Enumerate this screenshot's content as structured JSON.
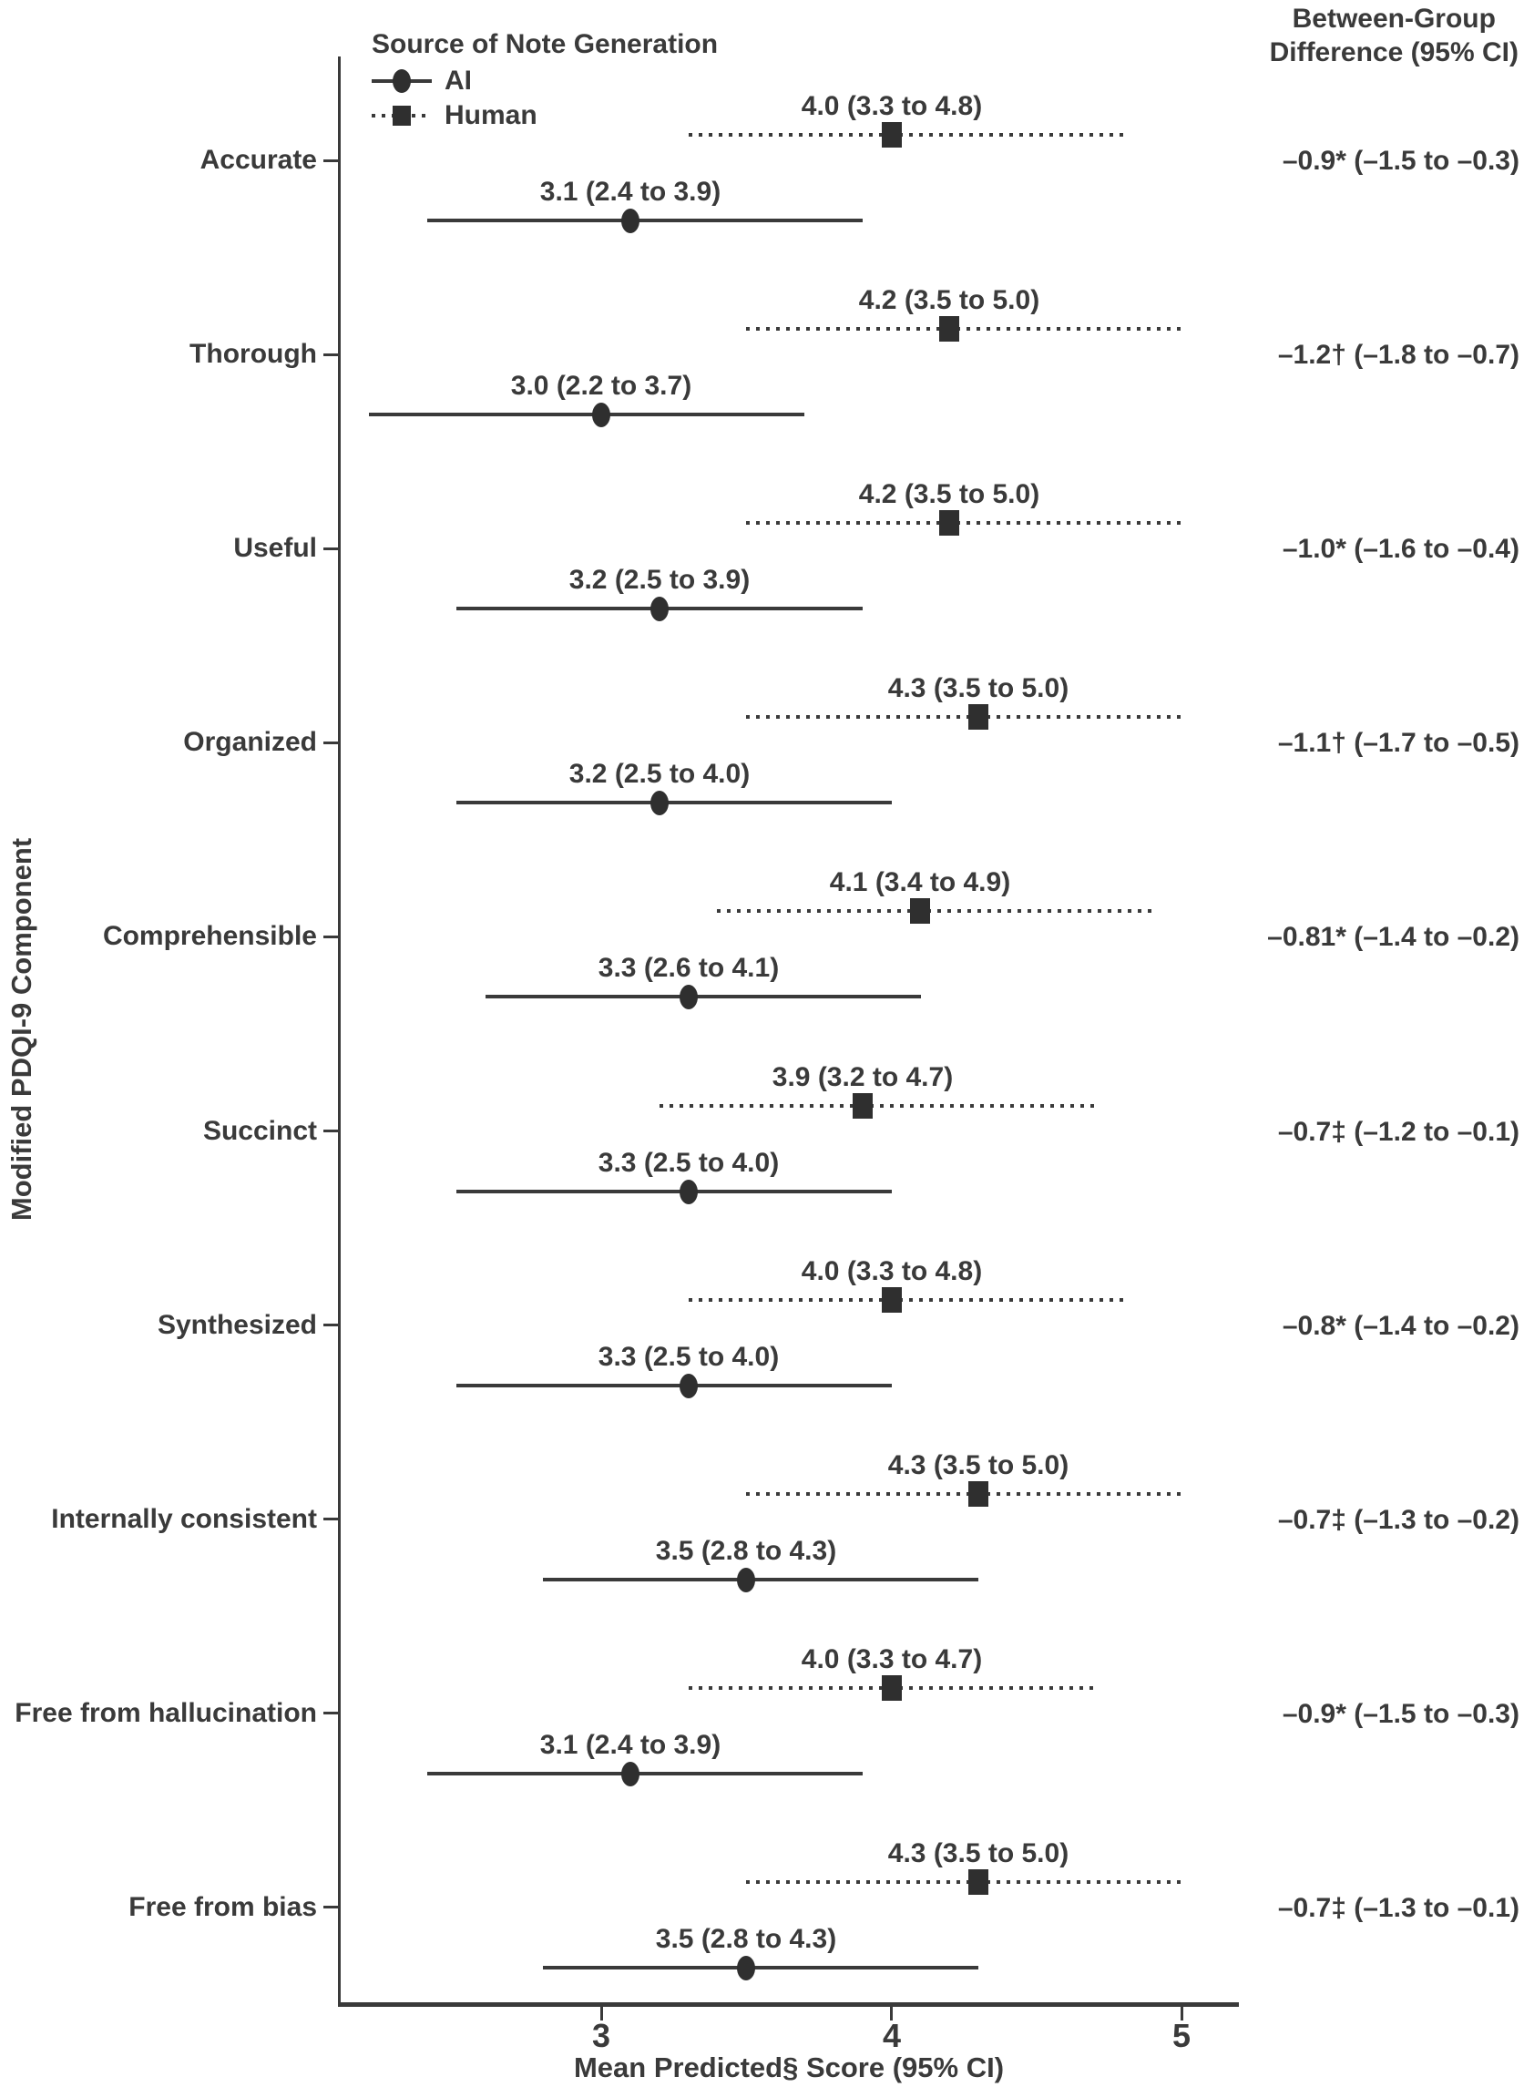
{
  "figure": {
    "background": "#ffffff",
    "text_color": "#3a3a3a"
  },
  "legend": {
    "title": "Source of Note Generation",
    "items": [
      {
        "label": "AI",
        "marker": "circle",
        "line_style": "solid"
      },
      {
        "label": "Human",
        "marker": "square",
        "line_style": "dotted"
      }
    ]
  },
  "right_column": {
    "header_line1": "Between-Group",
    "header_line2": "Difference (95% CI)"
  },
  "chart_data": {
    "type": "scatter",
    "variant": "forest-plot",
    "title": "",
    "xlabel": "Mean Predicted§ Score (95% CI)",
    "ylabel": "Modified PDQI-9 Component",
    "xlim": [
      2.1,
      5.2
    ],
    "x_ticks": [
      3,
      4,
      5
    ],
    "grid": false,
    "legend_position": "top-left-inside",
    "categories": [
      "Accurate",
      "Thorough",
      "Useful",
      "Organized",
      "Comprehensible",
      "Succinct",
      "Synthesized",
      "Internally consistent",
      "Free from hallucination",
      "Free from bias"
    ],
    "series": [
      {
        "name": "Human",
        "marker": "square",
        "line": "dotted",
        "values": [
          {
            "mean": 4.0,
            "lo": 3.3,
            "hi": 4.8,
            "label": "4.0 (3.3 to 4.8)"
          },
          {
            "mean": 4.2,
            "lo": 3.5,
            "hi": 5.0,
            "label": "4.2 (3.5 to 5.0)"
          },
          {
            "mean": 4.2,
            "lo": 3.5,
            "hi": 5.0,
            "label": "4.2 (3.5 to 5.0)"
          },
          {
            "mean": 4.3,
            "lo": 3.5,
            "hi": 5.0,
            "label": "4.3 (3.5 to 5.0)"
          },
          {
            "mean": 4.1,
            "lo": 3.4,
            "hi": 4.9,
            "label": "4.1 (3.4 to 4.9)"
          },
          {
            "mean": 3.9,
            "lo": 3.2,
            "hi": 4.7,
            "label": "3.9 (3.2 to 4.7)"
          },
          {
            "mean": 4.0,
            "lo": 3.3,
            "hi": 4.8,
            "label": "4.0 (3.3 to 4.8)"
          },
          {
            "mean": 4.3,
            "lo": 3.5,
            "hi": 5.0,
            "label": "4.3 (3.5 to 5.0)"
          },
          {
            "mean": 4.0,
            "lo": 3.3,
            "hi": 4.7,
            "label": "4.0 (3.3 to 4.7)"
          },
          {
            "mean": 4.3,
            "lo": 3.5,
            "hi": 5.0,
            "label": "4.3 (3.5 to 5.0)"
          }
        ]
      },
      {
        "name": "AI",
        "marker": "circle",
        "line": "solid",
        "values": [
          {
            "mean": 3.1,
            "lo": 2.4,
            "hi": 3.9,
            "label": "3.1 (2.4 to 3.9)"
          },
          {
            "mean": 3.0,
            "lo": 2.2,
            "hi": 3.7,
            "label": "3.0 (2.2 to 3.7)"
          },
          {
            "mean": 3.2,
            "lo": 2.5,
            "hi": 3.9,
            "label": "3.2 (2.5 to 3.9)"
          },
          {
            "mean": 3.2,
            "lo": 2.5,
            "hi": 4.0,
            "label": "3.2 (2.5 to 4.0)"
          },
          {
            "mean": 3.3,
            "lo": 2.6,
            "hi": 4.1,
            "label": "3.3 (2.6 to 4.1)"
          },
          {
            "mean": 3.3,
            "lo": 2.5,
            "hi": 4.0,
            "label": "3.3 (2.5 to 4.0)"
          },
          {
            "mean": 3.3,
            "lo": 2.5,
            "hi": 4.0,
            "label": "3.3 (2.5 to 4.0)"
          },
          {
            "mean": 3.5,
            "lo": 2.8,
            "hi": 4.3,
            "label": "3.5 (2.8 to 4.3)"
          },
          {
            "mean": 3.1,
            "lo": 2.4,
            "hi": 3.9,
            "label": "3.1 (2.4 to 3.9)"
          },
          {
            "mean": 3.5,
            "lo": 2.8,
            "hi": 4.3,
            "label": "3.5 (2.8 to 4.3)"
          }
        ]
      }
    ],
    "between_group_differences": [
      "–0.9* (–1.5 to –0.3)",
      "–1.2† (–1.8 to –0.7)",
      "–1.0* (–1.6 to –0.4)",
      "–1.1† (–1.7 to –0.5)",
      "–0.81* (–1.4 to –0.2)",
      "–0.7‡ (–1.2 to –0.1)",
      "–0.8* (–1.4 to –0.2)",
      "–0.7‡ (–1.3 to –0.2)",
      "–0.9* (–1.5 to –0.3)",
      "–0.7‡ (–1.3 to –0.1)"
    ]
  }
}
